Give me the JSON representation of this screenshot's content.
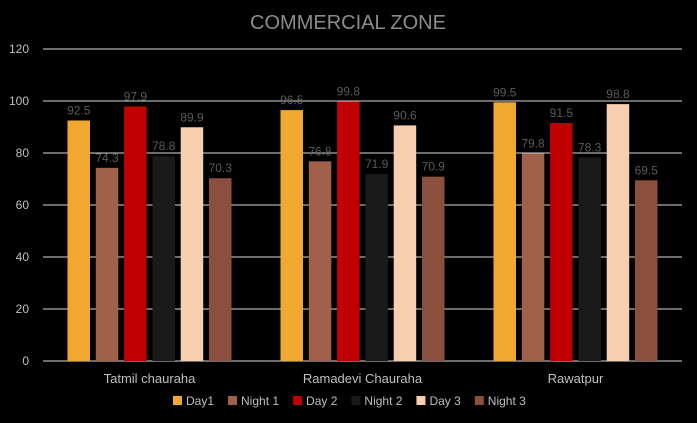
{
  "chart_data": {
    "type": "bar",
    "title": "COMMERCIAL ZONE",
    "xlabel": "",
    "ylabel": "",
    "ylim": [
      0,
      120
    ],
    "yticks": [
      0,
      20,
      40,
      60,
      80,
      100,
      120
    ],
    "grid": true,
    "legend_position": "bottom",
    "categories": [
      "Tatmil chauraha",
      "Ramadevi Chauraha",
      "Rawatpur"
    ],
    "series": [
      {
        "name": "Day1",
        "color": "#f0a830",
        "values": [
          92.5,
          96.5,
          99.5
        ]
      },
      {
        "name": "Night 1",
        "color": "#a0604a",
        "values": [
          74.3,
          76.8,
          79.8
        ]
      },
      {
        "name": "Day 2",
        "color": "#c00000",
        "values": [
          97.9,
          99.8,
          91.5
        ]
      },
      {
        "name": "Night 2",
        "color": "#1a1a1a",
        "values": [
          78.8,
          71.9,
          78.3
        ]
      },
      {
        "name": "Day 3",
        "color": "#f8cfae",
        "values": [
          89.9,
          90.6,
          98.8
        ]
      },
      {
        "name": "Night 3",
        "color": "#8b4f3e",
        "values": [
          70.3,
          70.9,
          69.5
        ]
      }
    ]
  }
}
